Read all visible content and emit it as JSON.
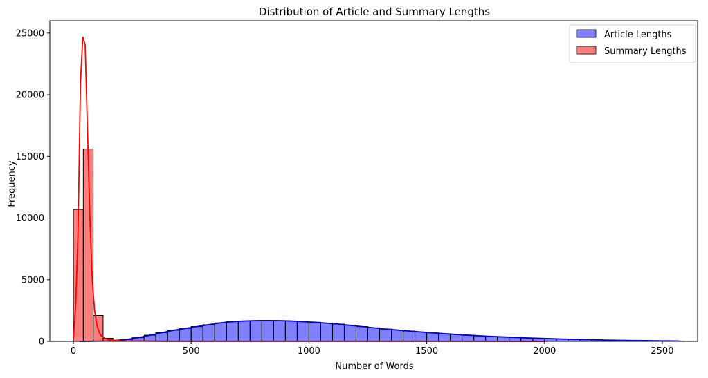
{
  "chart_data": {
    "type": "histogram",
    "title": "Distribution of Article and Summary Lengths",
    "xlabel": "Number of Words",
    "ylabel": "Frequency",
    "xlim": [
      -100,
      2650
    ],
    "ylim": [
      0,
      26000
    ],
    "x_ticks": [
      0,
      500,
      1000,
      1500,
      2000,
      2500
    ],
    "y_ticks": [
      0,
      5000,
      10000,
      15000,
      20000,
      25000
    ],
    "grid": false,
    "legend_position": "top-right",
    "series": [
      {
        "name": "Article Lengths",
        "color": "#0000ff",
        "fill_alpha": 0.5,
        "kde_color": "#0000cc",
        "bin_start": 0,
        "bin_width": 50,
        "bin_values": [
          0,
          10,
          30,
          70,
          150,
          300,
          500,
          700,
          900,
          1050,
          1200,
          1350,
          1500,
          1600,
          1650,
          1680,
          1690,
          1680,
          1650,
          1600,
          1550,
          1480,
          1400,
          1300,
          1200,
          1100,
          1000,
          920,
          840,
          760,
          690,
          620,
          560,
          500,
          450,
          400,
          360,
          320,
          280,
          250,
          220,
          190,
          165,
          140,
          120,
          100,
          85,
          70,
          60,
          50,
          40,
          30
        ]
      },
      {
        "name": "Summary Lengths",
        "color": "#ff0000",
        "fill_alpha": 0.5,
        "kde_color": "#ff0000",
        "bin_start": 0,
        "bin_width": 42,
        "bin_values": [
          10700,
          15600,
          2100,
          250,
          40,
          10
        ],
        "kde": [
          [
            0,
            200
          ],
          [
            10,
            3000
          ],
          [
            20,
            9000
          ],
          [
            30,
            21000
          ],
          [
            40,
            24700
          ],
          [
            50,
            24000
          ],
          [
            60,
            17000
          ],
          [
            70,
            10000
          ],
          [
            80,
            5000
          ],
          [
            90,
            2500
          ],
          [
            100,
            1300
          ],
          [
            110,
            700
          ],
          [
            120,
            400
          ],
          [
            140,
            200
          ],
          [
            170,
            100
          ],
          [
            200,
            40
          ],
          [
            400,
            10
          ],
          [
            800,
            10
          ],
          [
            1500,
            10
          ],
          [
            2000,
            0
          ]
        ]
      }
    ]
  }
}
